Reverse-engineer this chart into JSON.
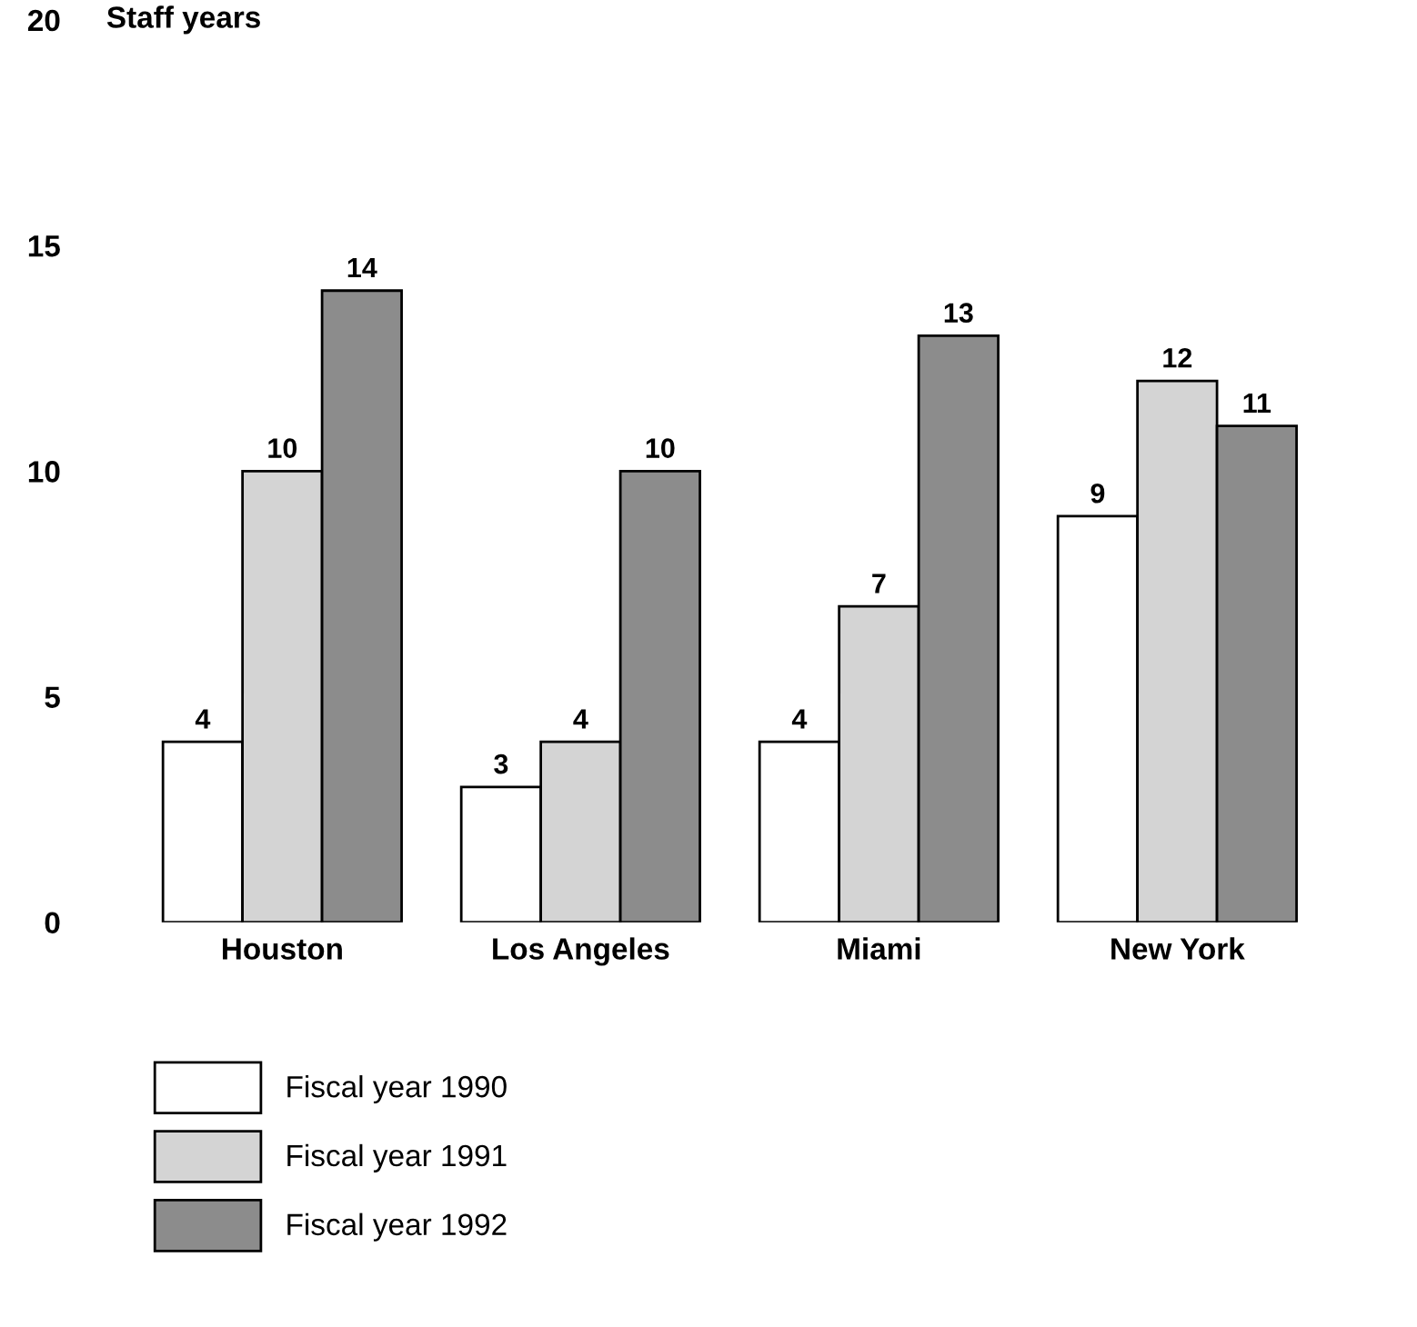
{
  "chart_data": {
    "type": "bar",
    "ylabel": "Staff years",
    "categories": [
      "Houston",
      "Los Angeles",
      "Miami",
      "New York"
    ],
    "series": [
      {
        "name": "Fiscal year 1990",
        "color": "#ffffff",
        "values": [
          4,
          3,
          4,
          9
        ]
      },
      {
        "name": "Fiscal year 1991",
        "color": "#d4d4d4",
        "values": [
          10,
          4,
          7,
          12
        ]
      },
      {
        "name": "Fiscal year 1992",
        "color": "#8c8c8c",
        "values": [
          14,
          10,
          13,
          11
        ]
      }
    ],
    "ylim": [
      0,
      20
    ],
    "yticks": [
      0,
      5,
      10,
      15,
      20
    ],
    "grid": false,
    "legend": "bottom",
    "data_labels": true
  }
}
